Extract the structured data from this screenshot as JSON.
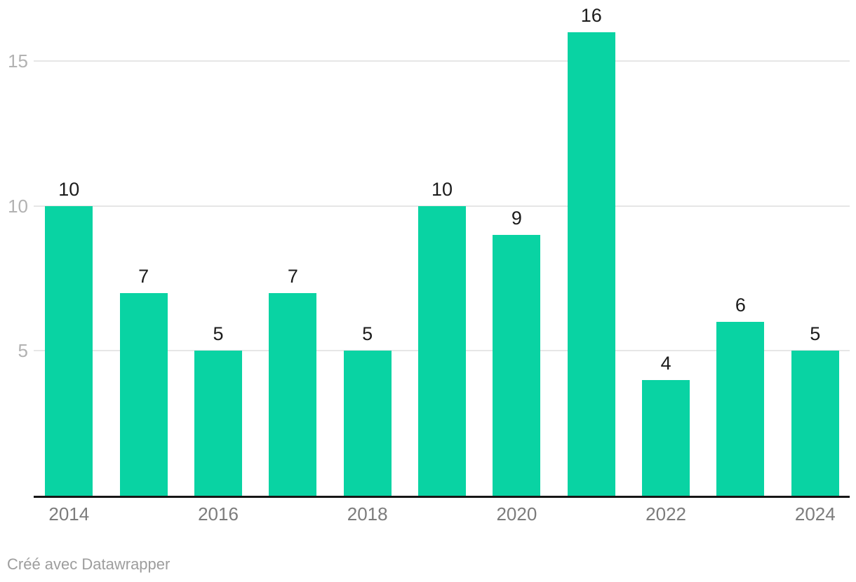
{
  "chart_data": {
    "type": "bar",
    "categories": [
      "2014",
      "2015",
      "2016",
      "2017",
      "2018",
      "2019",
      "2020",
      "2021",
      "2022",
      "2023",
      "2024"
    ],
    "values": [
      10,
      7,
      5,
      7,
      5,
      10,
      9,
      16,
      4,
      6,
      5
    ],
    "title": "",
    "xlabel": "",
    "ylabel": "",
    "ylim": [
      0,
      17.1
    ],
    "y_ticks": [
      5,
      10,
      15
    ],
    "y_tick_labels": [
      "5",
      "10",
      "15"
    ],
    "x_tick_labels": [
      "2014",
      "2016",
      "2018",
      "2020",
      "2022",
      "2024"
    ],
    "grid": "horizontal",
    "legend": "none",
    "value_labels_shown": true
  },
  "colors": {
    "bar": "#09d3a3",
    "gridline": "#e6e6e6",
    "baseline": "#161616",
    "value_label": "#1b1b1b",
    "y_tick": "#b2b2b2",
    "x_tick": "#7c7c7c",
    "footer": "#9d9d9d",
    "background": "#ffffff"
  },
  "footer": {
    "credit": "Créé avec Datawrapper"
  }
}
